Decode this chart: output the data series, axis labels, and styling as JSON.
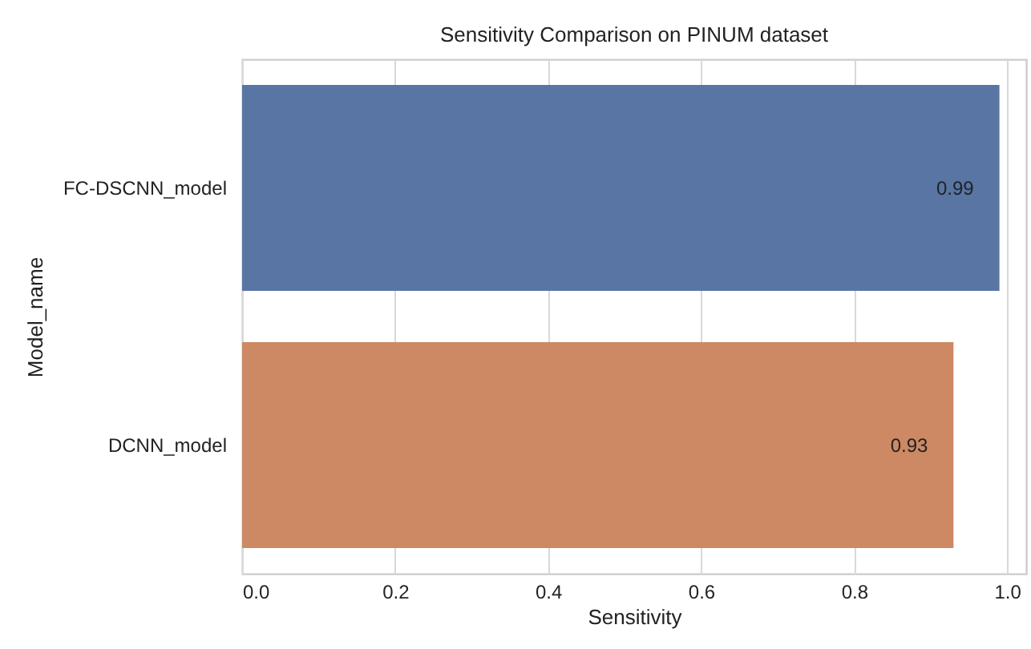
{
  "chart_data": {
    "type": "bar",
    "orientation": "horizontal",
    "title": "Sensitivity Comparison on PINUM dataset",
    "xlabel": "Sensitivity",
    "ylabel": "Model_name",
    "categories": [
      "FC-DSCNN_model",
      "DCNN_model"
    ],
    "values": [
      0.99,
      0.93
    ],
    "colors": [
      "#5875a4",
      "#cc8963"
    ],
    "data_labels": true,
    "xlim": [
      0,
      1.025
    ],
    "xticks": [
      {
        "value": 0,
        "label": "0.0"
      },
      {
        "value": 0.2,
        "label": "0.2"
      },
      {
        "value": 0.4,
        "label": "0.4"
      },
      {
        "value": 0.6,
        "label": "0.6"
      },
      {
        "value": 0.8,
        "label": "0.8"
      },
      {
        "value": 1,
        "label": "1.0"
      }
    ],
    "grid": "x"
  }
}
